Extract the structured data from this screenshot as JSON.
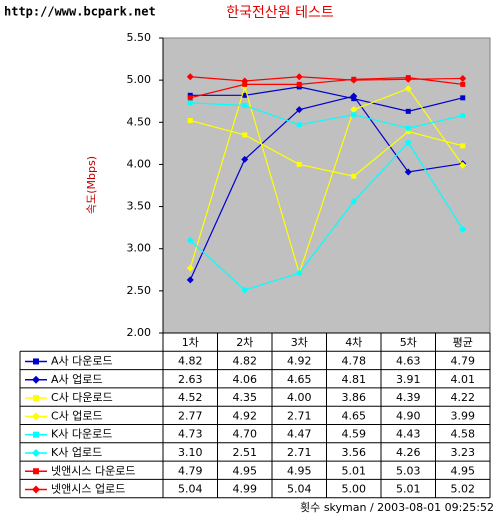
{
  "site": "http://www.bcpark.net",
  "chart_data": {
    "type": "line",
    "title": "한국전산원 테스트",
    "y_label": "속도(Mbps)",
    "x_label": "횟수",
    "annotation": "skyman / 2003-08-01 09:25:52",
    "categories": [
      "1차",
      "2차",
      "3차",
      "4차",
      "5차",
      "평균"
    ],
    "ylim": [
      2,
      5.5
    ],
    "yticks": [
      {
        "value": 2,
        "label": "2.00"
      },
      {
        "value": 2.5,
        "label": "2.50"
      },
      {
        "value": 3,
        "label": "3.00"
      },
      {
        "value": 3.5,
        "label": "3.50"
      },
      {
        "value": 4,
        "label": "4.00"
      },
      {
        "value": 4.5,
        "label": "4.50"
      },
      {
        "value": 5,
        "label": "5.00"
      },
      {
        "value": 5.5,
        "label": "5.50"
      }
    ],
    "plot_background": "#c0c0c0",
    "series": [
      {
        "name": "A사 다운로드",
        "color": "#0000cc",
        "marker": "square",
        "values": [
          4.82,
          4.82,
          4.92,
          4.78,
          4.63,
          4.79
        ],
        "value_labels": [
          "4.82",
          "4.82",
          "4.92",
          "4.78",
          "4.63",
          "4.79"
        ]
      },
      {
        "name": "A사 업로드",
        "color": "#0000cc",
        "marker": "diamond",
        "values": [
          2.63,
          4.06,
          4.65,
          4.81,
          3.91,
          4.01
        ],
        "value_labels": [
          "2.63",
          "4.06",
          "4.65",
          "4.81",
          "3.91",
          "4.01"
        ]
      },
      {
        "name": "C사 다운로드",
        "color": "#ffff00",
        "marker": "square",
        "values": [
          4.52,
          4.35,
          4,
          3.86,
          4.39,
          4.22
        ],
        "value_labels": [
          "4.52",
          "4.35",
          "4.00",
          "3.86",
          "4.39",
          "4.22"
        ]
      },
      {
        "name": "C사 업로드",
        "color": "#ffff00",
        "marker": "diamond",
        "values": [
          2.77,
          4.92,
          2.71,
          4.65,
          4.9,
          3.99
        ],
        "value_labels": [
          "2.77",
          "4.92",
          "2.71",
          "4.65",
          "4.90",
          "3.99"
        ]
      },
      {
        "name": "K사 다운로드",
        "color": "#00ffff",
        "marker": "square",
        "values": [
          4.73,
          4.7,
          4.47,
          4.59,
          4.43,
          4.58
        ],
        "value_labels": [
          "4.73",
          "4.70",
          "4.47",
          "4.59",
          "4.43",
          "4.58"
        ]
      },
      {
        "name": "K사 업로드",
        "color": "#00ffff",
        "marker": "diamond",
        "values": [
          3.1,
          2.51,
          2.71,
          3.56,
          4.26,
          3.23
        ],
        "value_labels": [
          "3.10",
          "2.51",
          "2.71",
          "3.56",
          "4.26",
          "3.23"
        ]
      },
      {
        "name": "넷앤시스 다운로드",
        "color": "#ff0000",
        "marker": "square",
        "values": [
          4.79,
          4.95,
          4.95,
          5.01,
          5.03,
          4.95
        ],
        "value_labels": [
          "4.79",
          "4.95",
          "4.95",
          "5.01",
          "5.03",
          "4.95"
        ]
      },
      {
        "name": "넷앤시스 업로드",
        "color": "#ff0000",
        "marker": "diamond",
        "values": [
          5.04,
          4.99,
          5.04,
          5,
          5.01,
          5.02
        ],
        "value_labels": [
          "5.04",
          "4.99",
          "5.04",
          "5.00",
          "5.01",
          "5.02"
        ]
      }
    ]
  }
}
